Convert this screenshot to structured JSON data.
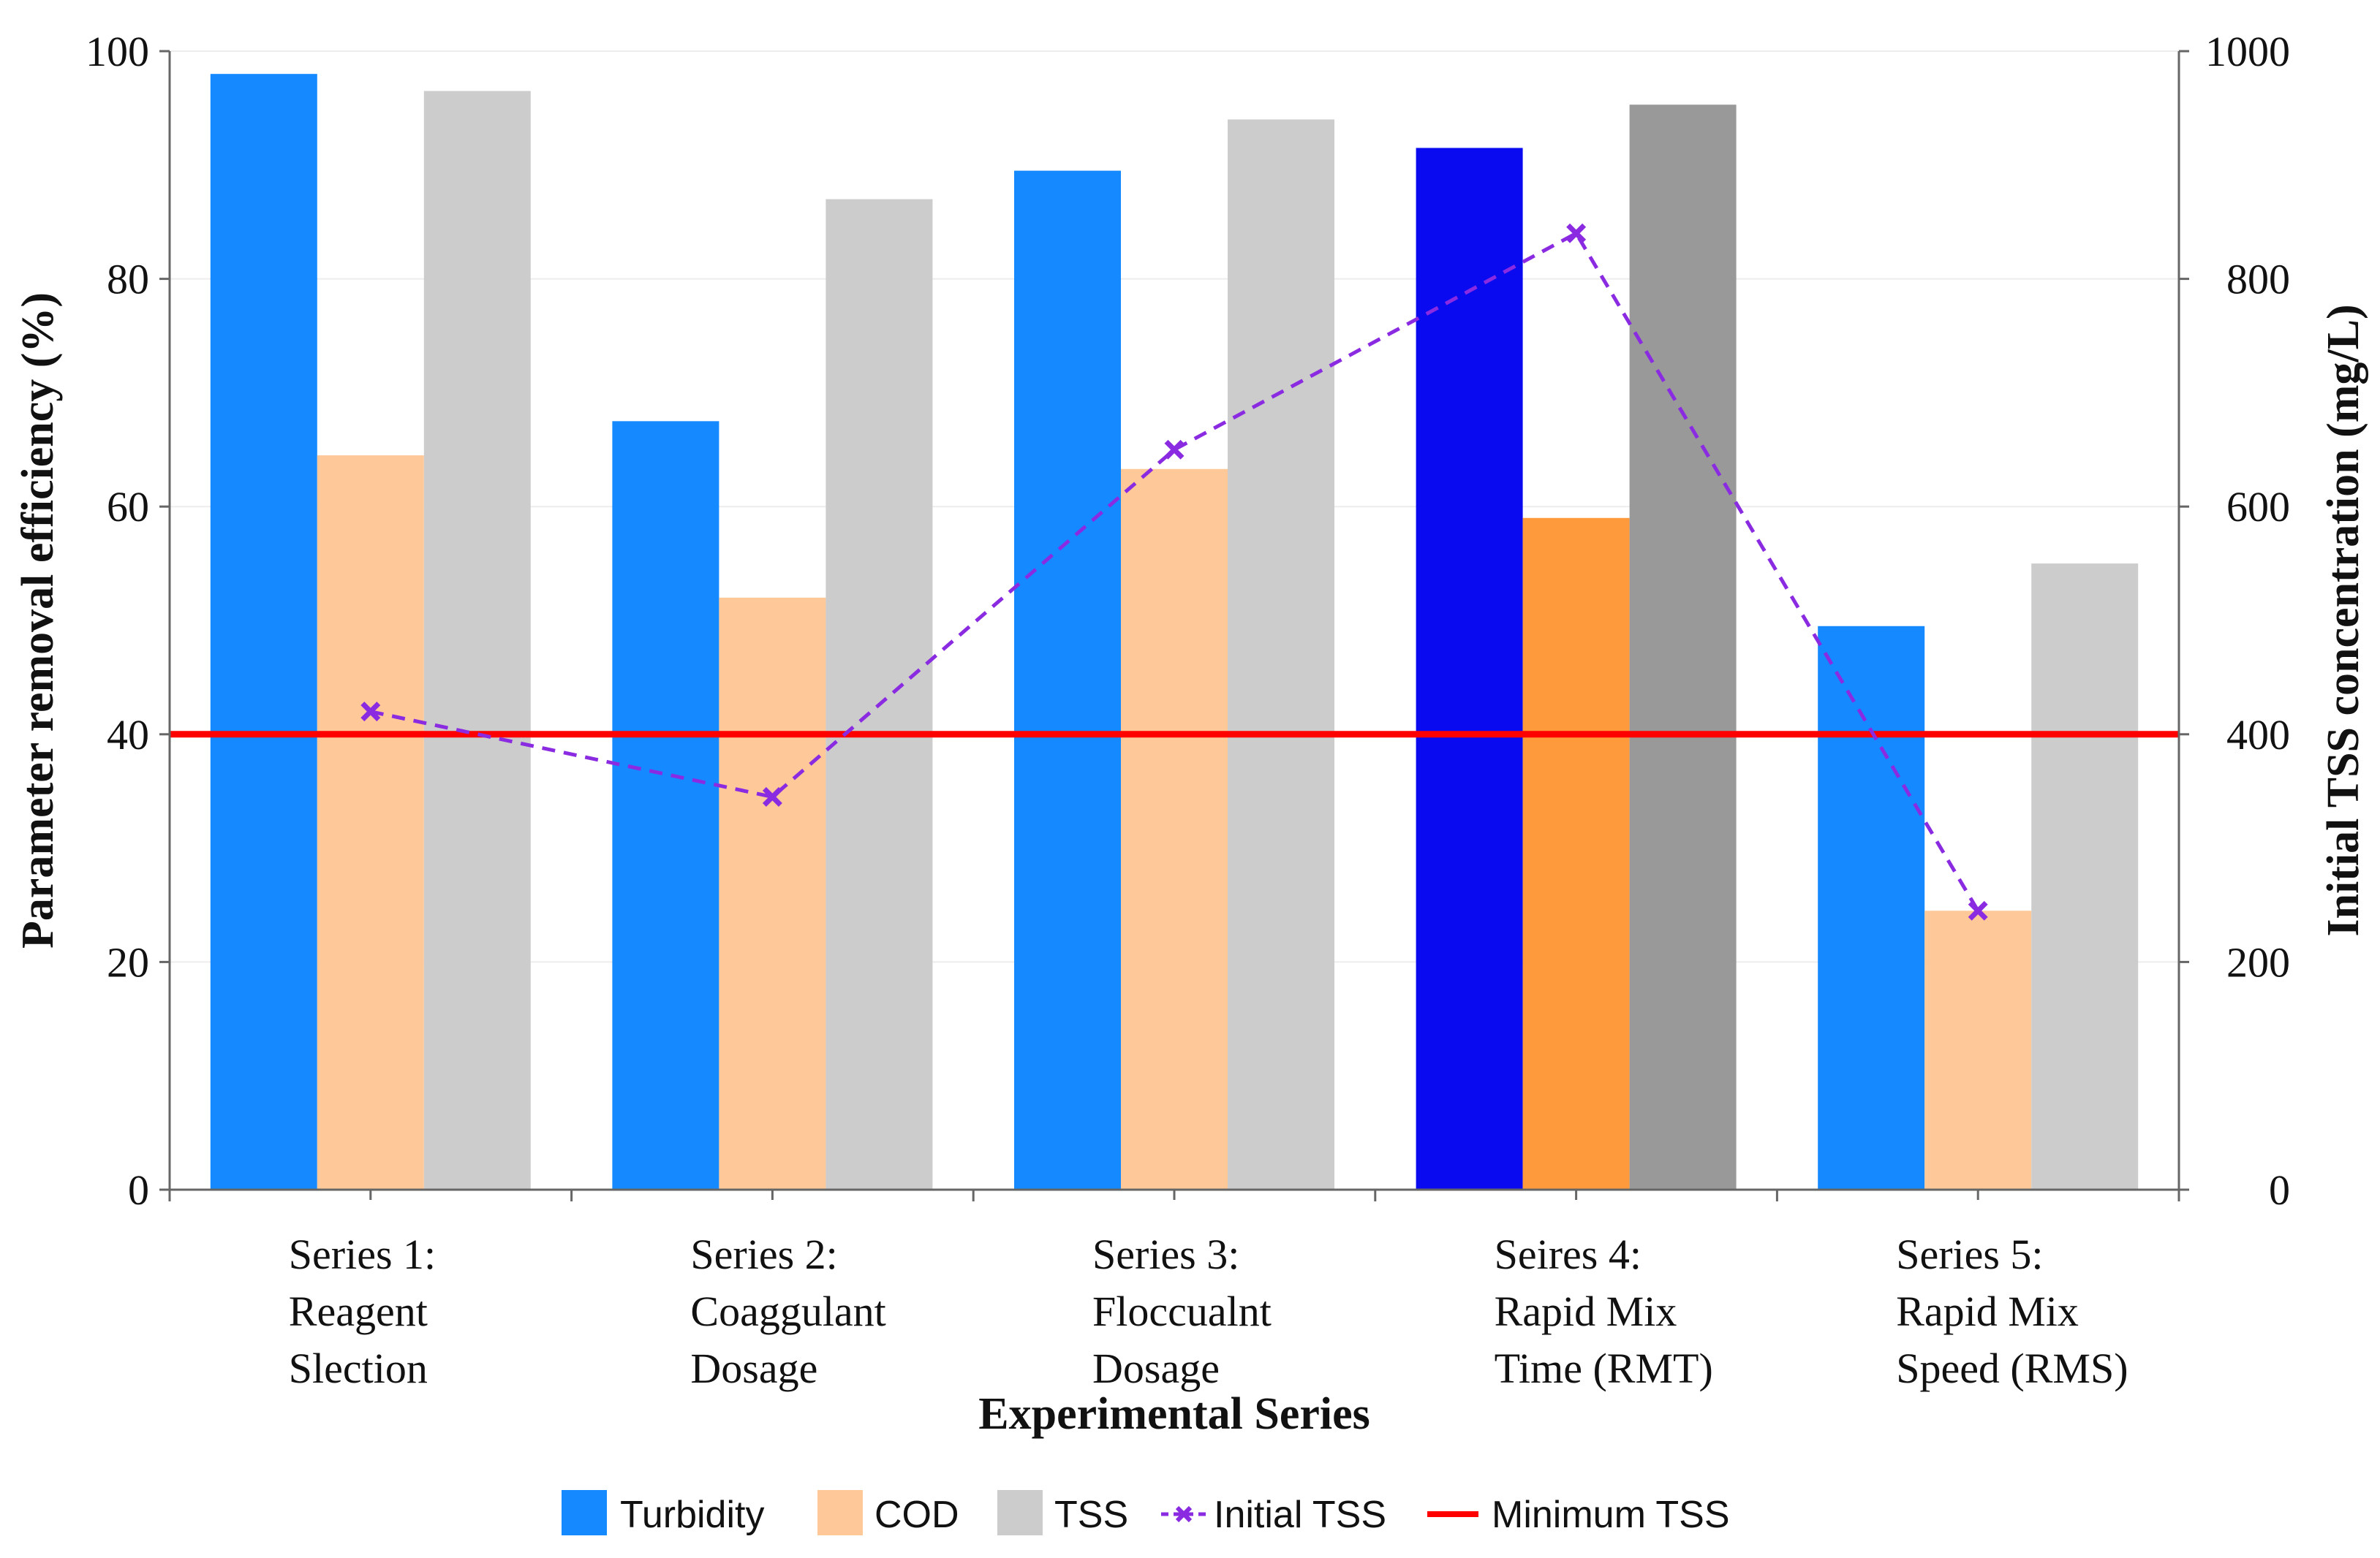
{
  "chart_data": {
    "type": "bar",
    "categories": [
      [
        "Series 1:",
        "Reagent",
        "Slection"
      ],
      [
        "Series 2:",
        "Coaggulant",
        "Dosage"
      ],
      [
        "Series 3:",
        "Floccualnt",
        "Dosage"
      ],
      [
        "Seires 4:",
        "Rapid Mix",
        "Time (RMT)"
      ],
      [
        "Series 5:",
        "Rapid Mix",
        "Speed (RMS)"
      ]
    ],
    "series": [
      {
        "name": "Turbidity",
        "axis": "left",
        "color": "#1589FF",
        "values": [
          98,
          67.5,
          89.5,
          91.5,
          49.5
        ]
      },
      {
        "name": "COD",
        "axis": "left",
        "color": "#FFC898",
        "values": [
          64.5,
          52,
          63.3,
          59,
          24.5
        ]
      },
      {
        "name": "TSS",
        "axis": "left",
        "color": "#CCCCCC",
        "values": [
          96.5,
          87,
          94,
          95.3,
          55
        ]
      }
    ],
    "highlight": {
      "category_index": 3,
      "colors": [
        "#0A0AF0",
        "#FF9A3C",
        "#999999"
      ]
    },
    "line_series": {
      "name": "Initial TSS",
      "axis": "right",
      "color": "#8A2BE2",
      "marker": "x",
      "style": "dashed",
      "values": [
        420,
        345,
        650,
        840,
        245
      ]
    },
    "reference_line": {
      "name": "Minimum TSS",
      "axis": "right",
      "value": 400,
      "color": "#FF0000"
    },
    "xlabel": "Experimental Series",
    "ylabel_left": "Parameter removal efficiency (%)",
    "ylabel_right": "Initial TSS concentration (mg/L)",
    "ylim_left": [
      0,
      100
    ],
    "ylim_right": [
      0,
      1000
    ],
    "yticks_left": [
      "0",
      "20",
      "40",
      "60",
      "80",
      "100"
    ],
    "yticks_right": [
      "0",
      "200",
      "400",
      "600",
      "800",
      "1000"
    ],
    "legend": [
      "Turbidity",
      "COD",
      "TSS",
      "Initial TSS",
      "Minimum TSS"
    ],
    "legend_position": "bottom",
    "grid": true
  }
}
